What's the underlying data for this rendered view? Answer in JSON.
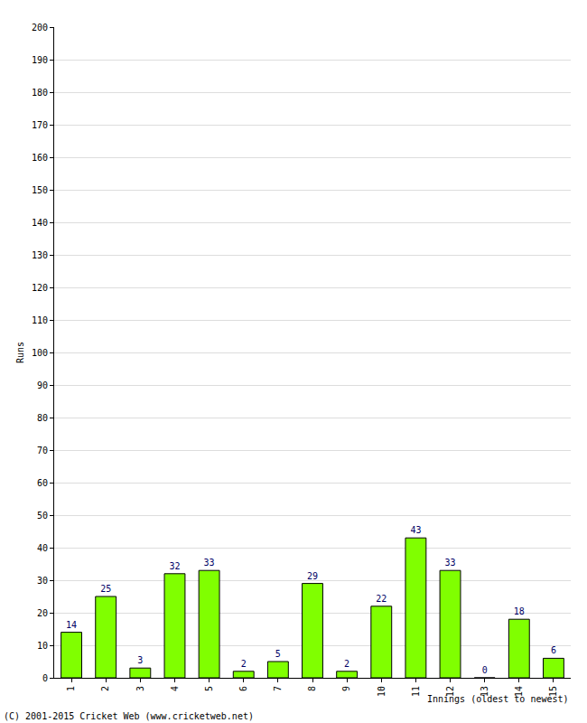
{
  "chart_data": {
    "type": "bar",
    "x_label": "Innings (oldest to newest)",
    "y_label": "Runs",
    "categories": [
      "1",
      "2",
      "3",
      "4",
      "5",
      "6",
      "7",
      "8",
      "9",
      "10",
      "11",
      "12",
      "13",
      "14",
      "15"
    ],
    "values": [
      14,
      25,
      3,
      32,
      33,
      2,
      5,
      29,
      2,
      22,
      43,
      33,
      0,
      18,
      6
    ],
    "color": "#80ff00",
    "ylim": [
      0,
      200
    ],
    "yticks": [
      0,
      10,
      20,
      30,
      40,
      50,
      60,
      70,
      80,
      90,
      100,
      110,
      120,
      130,
      140,
      150,
      160,
      170,
      180,
      190,
      200
    ],
    "grid": true,
    "data_labels": true,
    "annotations": [
      "(C) 2001-2015 Cricket Web (www.cricketweb.net)"
    ]
  }
}
